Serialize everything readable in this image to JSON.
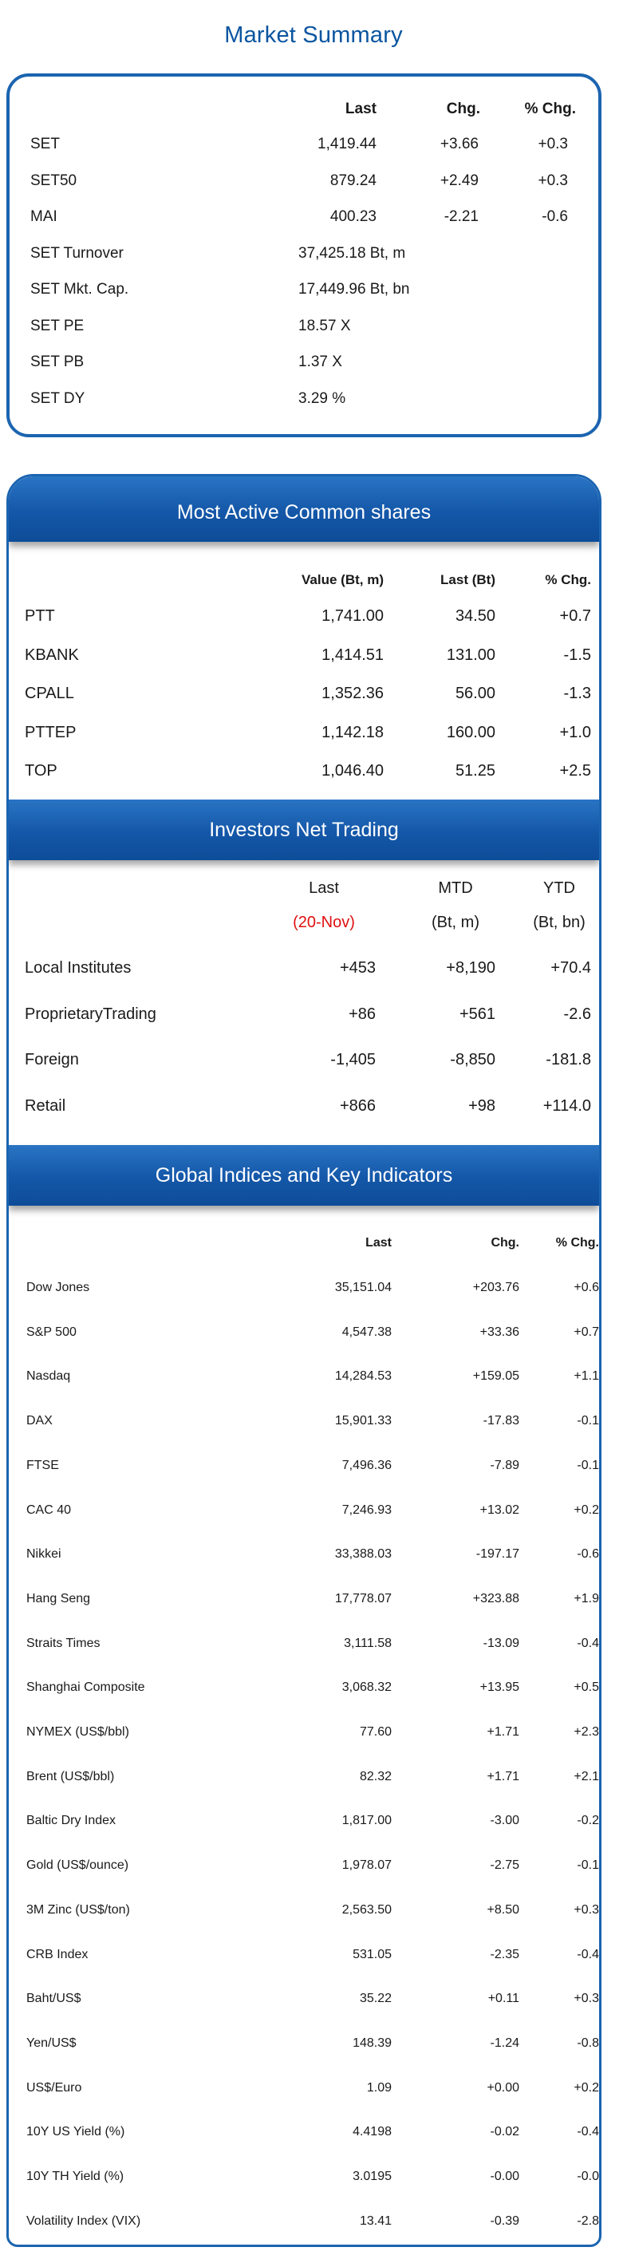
{
  "title": "Market Summary",
  "summary": {
    "headers": {
      "last": "Last",
      "chg": "Chg.",
      "pct": "% Chg."
    },
    "rows": [
      {
        "name": "SET",
        "last": "1,419.44",
        "chg": "+3.66",
        "pct": "+0.3"
      },
      {
        "name": "SET50",
        "last": "879.24",
        "chg": "+2.49",
        "pct": "+0.3"
      },
      {
        "name": "MAI",
        "last": "400.23",
        "chg": "-2.21",
        "pct": "-0.6"
      },
      {
        "name": "SET Turnover",
        "last": "37,425.18 Bt, m",
        "chg": "",
        "pct": ""
      },
      {
        "name": "SET Mkt. Cap.",
        "last": "17,449.96 Bt, bn",
        "chg": "",
        "pct": ""
      },
      {
        "name": "SET PE",
        "last": "18.57 X",
        "chg": "",
        "pct": ""
      },
      {
        "name": "SET PB",
        "last": "1.37 X",
        "chg": "",
        "pct": ""
      },
      {
        "name": "SET DY",
        "last": "3.29 %",
        "chg": "",
        "pct": ""
      }
    ]
  },
  "most_active": {
    "title": "Most Active Common shares",
    "headers": {
      "value": "Value (Bt, m)",
      "last": "Last (Bt)",
      "pct": "% Chg."
    },
    "rows": [
      {
        "name": "PTT",
        "value": "1,741.00",
        "last": "34.50",
        "pct": "+0.7"
      },
      {
        "name": "KBANK",
        "value": "1,414.51",
        "last": "131.00",
        "pct": "-1.5"
      },
      {
        "name": "CPALL",
        "value": "1,352.36",
        "last": "56.00",
        "pct": "-1.3"
      },
      {
        "name": "PTTEP",
        "value": "1,142.18",
        "last": "160.00",
        "pct": "+1.0"
      },
      {
        "name": "TOP",
        "value": "1,046.40",
        "last": "51.25",
        "pct": "+2.5"
      }
    ]
  },
  "investors": {
    "title": "Investors Net Trading",
    "headers": {
      "last": "Last",
      "mtd": "MTD",
      "ytd": "YTD",
      "last_sub": "(20-Nov)",
      "mtd_sub": "(Bt, m)",
      "ytd_sub": "(Bt, bn)"
    },
    "rows": [
      {
        "name": "Local Institutes",
        "last": "+453",
        "mtd": "+8,190",
        "ytd": "+70.4"
      },
      {
        "name": "ProprietaryTrading",
        "last": "+86",
        "mtd": "+561",
        "ytd": "-2.6"
      },
      {
        "name": "Foreign",
        "last": "-1,405",
        "mtd": "-8,850",
        "ytd": "-181.8"
      },
      {
        "name": "Retail",
        "last": "+866",
        "mtd": "+98",
        "ytd": "+114.0"
      }
    ]
  },
  "global": {
    "title": "Global Indices and Key Indicators",
    "headers": {
      "last": "Last",
      "chg": "Chg.",
      "pct": "% Chg."
    },
    "rows": [
      {
        "name": "Dow Jones",
        "last": "35,151.04",
        "chg": "+203.76",
        "pct": "+0.6"
      },
      {
        "name": "S&P 500",
        "last": "4,547.38",
        "chg": "+33.36",
        "pct": "+0.7"
      },
      {
        "name": "Nasdaq",
        "last": "14,284.53",
        "chg": "+159.05",
        "pct": "+1.1"
      },
      {
        "name": "DAX",
        "last": "15,901.33",
        "chg": "-17.83",
        "pct": "-0.1"
      },
      {
        "name": "FTSE",
        "last": "7,496.36",
        "chg": "-7.89",
        "pct": "-0.1"
      },
      {
        "name": "CAC 40",
        "last": "7,246.93",
        "chg": "+13.02",
        "pct": "+0.2"
      },
      {
        "name": "Nikkei",
        "last": "33,388.03",
        "chg": "-197.17",
        "pct": "-0.6"
      },
      {
        "name": "Hang Seng",
        "last": "17,778.07",
        "chg": "+323.88",
        "pct": "+1.9"
      },
      {
        "name": "Straits Times",
        "last": "3,111.58",
        "chg": "-13.09",
        "pct": "-0.4"
      },
      {
        "name": "Shanghai Composite",
        "last": "3,068.32",
        "chg": "+13.95",
        "pct": "+0.5"
      },
      {
        "name": "NYMEX (US$/bbl)",
        "last": "77.60",
        "chg": "+1.71",
        "pct": "+2.3"
      },
      {
        "name": "Brent (US$/bbl)",
        "last": "82.32",
        "chg": "+1.71",
        "pct": "+2.1"
      },
      {
        "name": "Baltic Dry Index",
        "last": "1,817.00",
        "chg": "-3.00",
        "pct": "-0.2"
      },
      {
        "name": "Gold (US$/ounce)",
        "last": "1,978.07",
        "chg": "-2.75",
        "pct": "-0.1"
      },
      {
        "name": "3M Zinc (US$/ton)",
        "last": "2,563.50",
        "chg": "+8.50",
        "pct": "+0.3"
      },
      {
        "name": "CRB Index",
        "last": "531.05",
        "chg": "-2.35",
        "pct": "-0.4"
      },
      {
        "name": "Baht/US$",
        "last": "35.22",
        "chg": "+0.11",
        "pct": "+0.3"
      },
      {
        "name": "Yen/US$",
        "last": "148.39",
        "chg": "-1.24",
        "pct": "-0.8"
      },
      {
        "name": "US$/Euro",
        "last": "1.09",
        "chg": "+0.00",
        "pct": "+0.2"
      },
      {
        "name": "10Y US Yield (%)",
        "last": "4.4198",
        "chg": "-0.02",
        "pct": "-0.4"
      },
      {
        "name": "10Y TH Yield (%)",
        "last": "3.0195",
        "chg": "-0.00",
        "pct": "-0.0"
      },
      {
        "name": "Volatility Index (VIX)",
        "last": "13.41",
        "chg": "-0.39",
        "pct": "-2.8"
      }
    ]
  }
}
